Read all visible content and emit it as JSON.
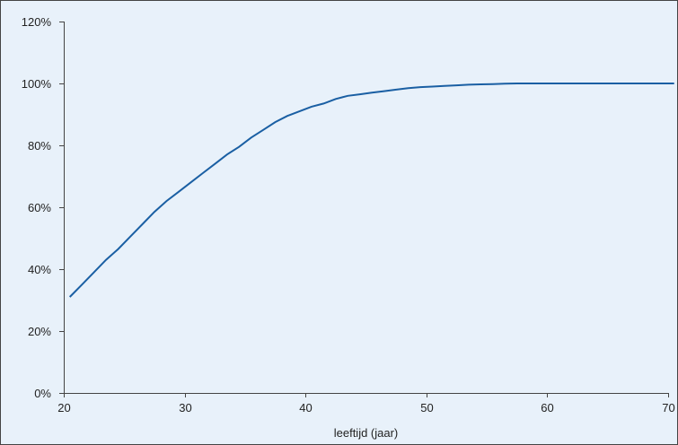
{
  "colors": {
    "background": "#e8f1fa",
    "frame": "#444444",
    "axis": "#444444",
    "series_line": "#1a5fa3"
  },
  "chart_data": {
    "type": "line",
    "title": "",
    "xlabel": "leeftijd (jaar)",
    "ylabel": "",
    "grid": false,
    "legend": "none",
    "xlim": [
      20,
      70
    ],
    "ylim": [
      0,
      120
    ],
    "x_ticks": [
      "20",
      "30",
      "40",
      "50",
      "60",
      "70"
    ],
    "y_ticks": [
      "0%",
      "20%",
      "40%",
      "60%",
      "80%",
      "100%",
      "120%"
    ],
    "series": [
      {
        "x": [
          20.5,
          21.5,
          22.5,
          23.5,
          24.5,
          25.5,
          26.5,
          27.5,
          28.5,
          29.5,
          30.5,
          31.5,
          32.5,
          33.5,
          34.5,
          35.5,
          36.5,
          37.5,
          38.5,
          39.5,
          40.5,
          41.5,
          42.5,
          43.5,
          44.5,
          45.5,
          46.5,
          47.5,
          48.5,
          49.5,
          50.5,
          51.5,
          52.5,
          53.5,
          54.5,
          55.5,
          56.5,
          57.5,
          58.5,
          59.5,
          60.5,
          61.5,
          62.5,
          63.5,
          64.5,
          65.5,
          66.5,
          67.5,
          68.5,
          69.5,
          70.5
        ],
        "y": [
          31,
          35,
          39,
          43,
          46.5,
          50.5,
          54.5,
          58.5,
          62,
          65,
          68,
          71,
          74,
          77,
          79.5,
          82.5,
          85,
          87.5,
          89.5,
          91,
          92.5,
          93.5,
          95,
          96,
          96.5,
          97,
          97.5,
          98,
          98.5,
          98.8,
          99,
          99.2,
          99.4,
          99.6,
          99.7,
          99.8,
          99.9,
          100,
          100,
          100,
          100,
          100,
          100,
          100,
          100,
          100,
          100,
          100,
          100,
          100,
          100
        ]
      }
    ]
  }
}
